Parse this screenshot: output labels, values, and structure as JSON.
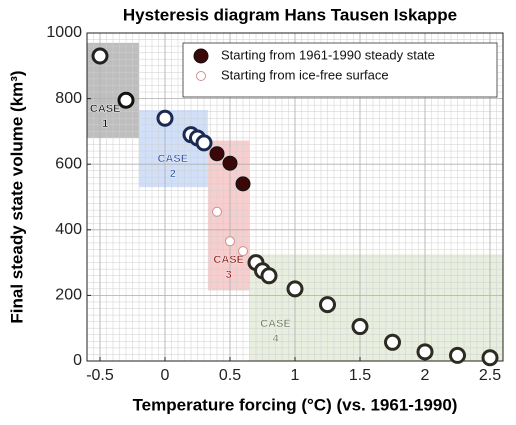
{
  "chart_data": {
    "type": "scatter",
    "title": "Hysteresis diagram Hans Tausen Iskappe",
    "xlabel": "Temperature forcing (°C) (vs. 1961-1990)",
    "ylabel": "Final steady state volume (km³)",
    "xlim": [
      -0.6,
      2.6
    ],
    "ylim": [
      0,
      1000
    ],
    "xticks": [
      -0.5,
      0,
      0.5,
      1,
      1.5,
      2,
      2.5
    ],
    "yticks": [
      0,
      200,
      400,
      600,
      800,
      1000
    ],
    "grid": true,
    "legend": "upper right",
    "regions": [
      {
        "label": [
          "CASE",
          "1"
        ],
        "x": [
          -0.6,
          -0.2
        ],
        "y": [
          680,
          970
        ],
        "color": "#b3b3b3",
        "text_color": "#111111",
        "text_at": [
          -0.46,
          725
        ]
      },
      {
        "label": [
          "CASE",
          "2"
        ],
        "x": [
          -0.2,
          0.33
        ],
        "y": [
          530,
          765
        ],
        "color": "#c9dbf7",
        "text_color": "#2a4d9c",
        "text_at": [
          0.06,
          573
        ]
      },
      {
        "label": [
          "CASE",
          "3"
        ],
        "x": [
          0.33,
          0.65
        ],
        "y": [
          215,
          672
        ],
        "color": "#f7c4c4",
        "text_color": "#8b1010",
        "text_at": [
          0.49,
          265
        ]
      },
      {
        "label": [
          "CASE",
          "4"
        ],
        "x": [
          0.65,
          2.6
        ],
        "y": [
          0,
          325
        ],
        "color": "#e5ecd9",
        "text_color": "#6a7a5a",
        "text_at": [
          0.85,
          70
        ]
      }
    ],
    "series": [
      {
        "name": "Starting from 1961-1990 steady state",
        "marker": "filled",
        "color": "#3a0808",
        "x": [
          0.4,
          0.5,
          0.6
        ],
        "values": [
          632,
          603,
          540
        ]
      },
      {
        "name": "Starting from ice-free surface",
        "marker": "open-small",
        "color": "#d88c8c",
        "x": [
          0.4,
          0.5,
          0.6
        ],
        "values": [
          455,
          365,
          335
        ]
      },
      {
        "marker": "open-thick",
        "x": [
          -0.5,
          -0.3,
          0,
          0.2,
          0.25,
          0.3,
          0.7,
          0.75,
          0.8,
          1,
          1.25,
          1.5,
          1.75,
          2,
          2.25,
          2.5
        ],
        "values": [
          930,
          795,
          740,
          690,
          680,
          665,
          300,
          275,
          260,
          220,
          172,
          105,
          57,
          28,
          17,
          10
        ],
        "colors": [
          "#222222",
          "#111111",
          "#1a2a55",
          "#1a2a55",
          "#1a2a55",
          "#1a2a55",
          "#2b2b22",
          "#2b2b22",
          "#2b2b22",
          "#2b2b22",
          "#2b2b22",
          "#2b2b22",
          "#2b2b22",
          "#2b2b22",
          "#2b2b22",
          "#2b2b22"
        ]
      }
    ]
  }
}
